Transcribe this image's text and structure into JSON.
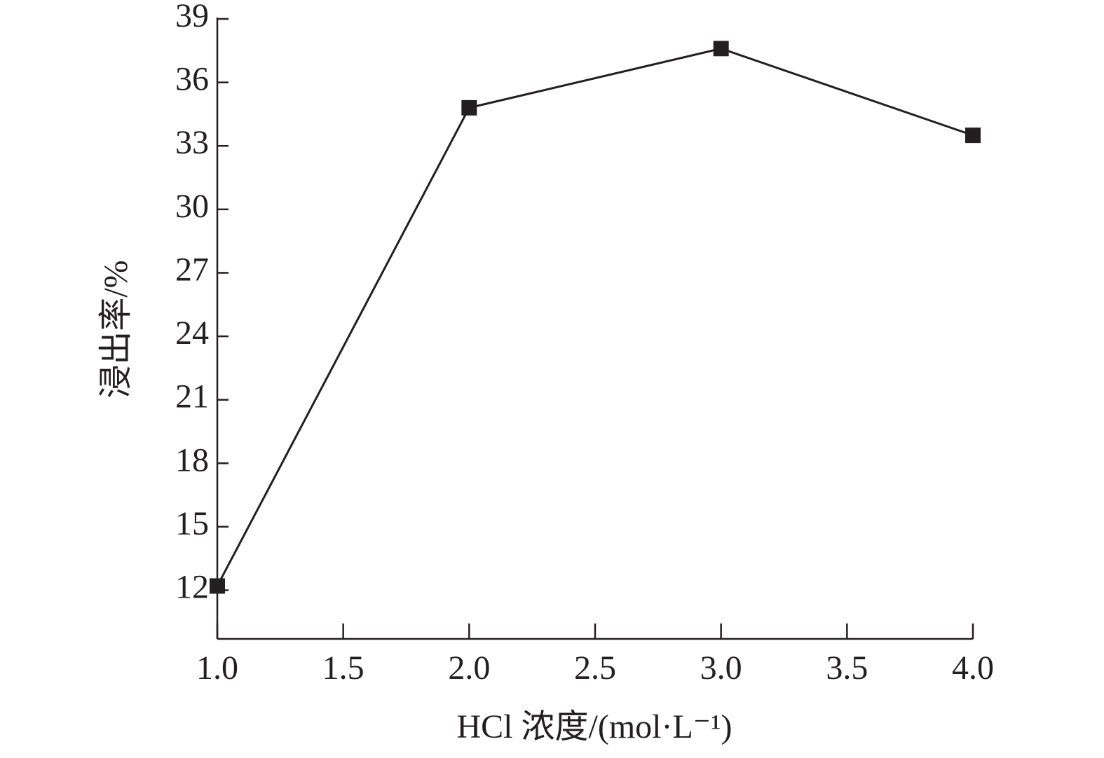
{
  "chart_data": {
    "type": "line",
    "x_label": "HCl 浓度/(mol·L⁻¹)",
    "y_label": "浸出率/%",
    "x": [
      1,
      2,
      3,
      4
    ],
    "series": [
      {
        "color": "#231f20",
        "values": [
          12.2,
          34.8,
          37.6,
          33.5
        ]
      }
    ],
    "xlim": [
      1,
      4
    ],
    "xticks": [
      {
        "value": 1,
        "label": "1.0"
      },
      {
        "value": 1.5,
        "label": "1.5"
      },
      {
        "value": 2,
        "label": "2.0"
      },
      {
        "value": 2.5,
        "label": "2.5"
      },
      {
        "value": 3,
        "label": "3.0"
      },
      {
        "value": 3.5,
        "label": "3.5"
      },
      {
        "value": 4,
        "label": "4.0"
      }
    ],
    "ylim": [
      9.7,
      39
    ],
    "yticks": [
      12,
      15,
      18,
      21,
      24,
      27,
      30,
      33,
      36,
      39
    ]
  }
}
